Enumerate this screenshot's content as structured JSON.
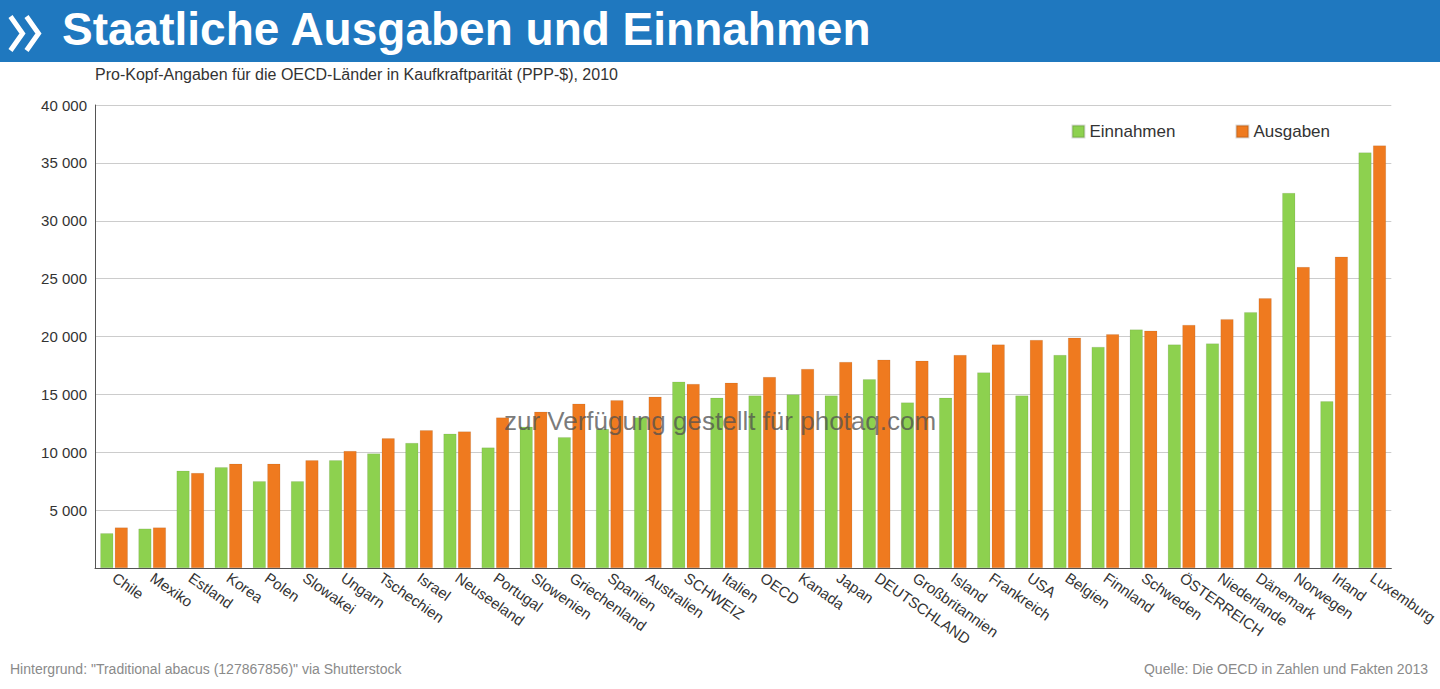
{
  "chart_data": {
    "type": "bar",
    "title": "Staatliche Ausgaben und Einnahmen",
    "subtitle": "Pro-Kopf-Angaben für die OECD-Länder in Kaufkraftparität (PPP-$), 2010",
    "notes": [
      "Hintergrund: \"Traditional abacus (127867856)\" via Shutterstock",
      "Quelle: Die OECD in Zahlen und Fakten 2013"
    ],
    "annotations": [
      "zur Verfügung gestellt für photaq.com"
    ],
    "categories": [
      "Chile",
      "Mexiko",
      "Estland",
      "Korea",
      "Polen",
      "Slowakei",
      "Ungarn",
      "Tschechien",
      "Israel",
      "Neuseeland",
      "Portugal",
      "Slowenien",
      "Griechenland",
      "Spanien",
      "Australien",
      "SCHWEIZ",
      "Italien",
      "OECD",
      "Kanada",
      "Japan",
      "DEUTSCHLAND",
      "Großbritannien",
      "Island",
      "Frankreich",
      "USA",
      "Belgien",
      "Finnland",
      "Schweden",
      "ÖSTERREICH",
      "Niederlande",
      "Dänemark",
      "Norwegen",
      "Irland",
      "Luxemburg"
    ],
    "series": [
      {
        "name": "Einnahmen",
        "color": "#8dd14f",
        "values": [
          3000,
          3400,
          8400,
          8700,
          7500,
          7500,
          9300,
          9900,
          10800,
          11600,
          10400,
          12200,
          11300,
          12000,
          13000,
          16100,
          14700,
          14900,
          15000,
          14900,
          16300,
          14300,
          14700,
          16900,
          14900,
          18400,
          19100,
          20600,
          19300,
          19400,
          22100,
          32400,
          14400,
          35900
        ]
      },
      {
        "name": "Ausgaben",
        "color": "#ef7a1f",
        "values": [
          3500,
          3500,
          8200,
          9000,
          9000,
          9300,
          10100,
          11200,
          11900,
          11800,
          13000,
          13500,
          14200,
          14500,
          14800,
          15900,
          16000,
          16500,
          17200,
          17800,
          18000,
          17900,
          18400,
          19300,
          19700,
          19900,
          20200,
          20500,
          21000,
          21500,
          23300,
          26000,
          26900,
          36500
        ]
      }
    ],
    "ylim": [
      0,
      40000
    ],
    "yticks": [
      {
        "value": 5000,
        "label": "5 000"
      },
      {
        "value": 10000,
        "label": "10 000"
      },
      {
        "value": 15000,
        "label": "15 000"
      },
      {
        "value": 20000,
        "label": "20 000"
      },
      {
        "value": 25000,
        "label": "25 000"
      },
      {
        "value": 30000,
        "label": "30 000"
      },
      {
        "value": 35000,
        "label": "35 000"
      },
      {
        "value": 40000,
        "label": "40 000"
      }
    ],
    "grid": true,
    "legend": "upper right"
  }
}
